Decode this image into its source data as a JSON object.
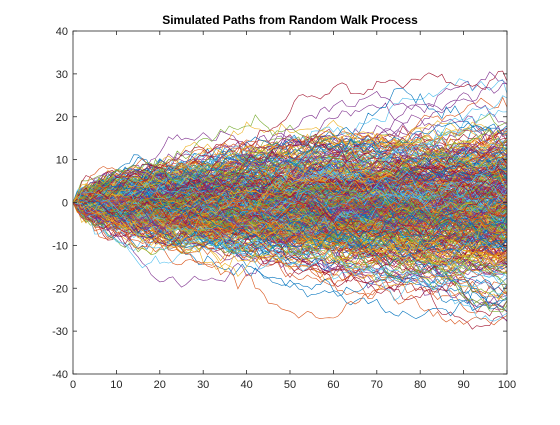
{
  "chart_data": {
    "type": "line",
    "title": "Simulated Paths from Random Walk Process",
    "xlabel": "",
    "ylabel": "",
    "xlim": [
      0,
      100
    ],
    "ylim": [
      -40,
      40
    ],
    "x_ticks": [
      0,
      10,
      20,
      30,
      40,
      50,
      60,
      70,
      80,
      90,
      100
    ],
    "y_ticks": [
      -40,
      -30,
      -20,
      -10,
      0,
      10,
      20,
      30,
      40
    ],
    "x_tick_labels": [
      "0",
      "10",
      "20",
      "30",
      "40",
      "50",
      "60",
      "70",
      "80",
      "90",
      "100"
    ],
    "y_tick_labels": [
      "-40",
      "-30",
      "-20",
      "-10",
      "0",
      "10",
      "20",
      "30",
      "40"
    ],
    "grid": false,
    "legend": "none",
    "num_series": 500,
    "x_start": 0,
    "x_end": 100,
    "start_value": 0,
    "series_colors": [
      "#0072bd",
      "#d95319",
      "#edb120",
      "#7e2f8e",
      "#77ac30",
      "#4dbeee",
      "#a2142f"
    ]
  }
}
